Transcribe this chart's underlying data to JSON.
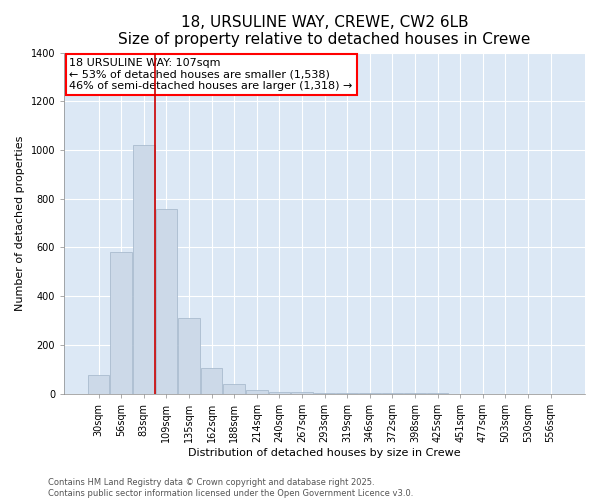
{
  "title": "18, URSULINE WAY, CREWE, CW2 6LB",
  "subtitle": "Size of property relative to detached houses in Crewe",
  "xlabel": "Distribution of detached houses by size in Crewe",
  "ylabel": "Number of detached properties",
  "categories": [
    "30sqm",
    "56sqm",
    "83sqm",
    "109sqm",
    "135sqm",
    "162sqm",
    "188sqm",
    "214sqm",
    "240sqm",
    "267sqm",
    "293sqm",
    "319sqm",
    "346sqm",
    "372sqm",
    "398sqm",
    "425sqm",
    "451sqm",
    "477sqm",
    "503sqm",
    "530sqm",
    "556sqm"
  ],
  "values": [
    75,
    580,
    1020,
    760,
    310,
    105,
    38,
    15,
    8,
    5,
    3,
    2,
    2,
    1,
    1,
    1,
    0,
    0,
    0,
    0,
    0
  ],
  "bar_color": "#ccd9e8",
  "bar_edge_color": "#aabcce",
  "vline_color": "#cc0000",
  "vline_x_index": 2.5,
  "annotation_text_line1": "18 URSULINE WAY: 107sqm",
  "annotation_text_line2": "← 53% of detached houses are smaller (1,538)",
  "annotation_text_line3": "46% of semi-detached houses are larger (1,318) →",
  "annotation_box_color": "red",
  "annotation_box_bg": "white",
  "bg_color": "#dce8f5",
  "ylim": [
    0,
    1400
  ],
  "yticks": [
    0,
    200,
    400,
    600,
    800,
    1000,
    1200,
    1400
  ],
  "footer_text": "Contains HM Land Registry data © Crown copyright and database right 2025.\nContains public sector information licensed under the Open Government Licence v3.0.",
  "title_fontsize": 11,
  "subtitle_fontsize": 9,
  "xlabel_fontsize": 8,
  "ylabel_fontsize": 8,
  "tick_fontsize": 7,
  "footer_fontsize": 6,
  "annot_fontsize": 8
}
